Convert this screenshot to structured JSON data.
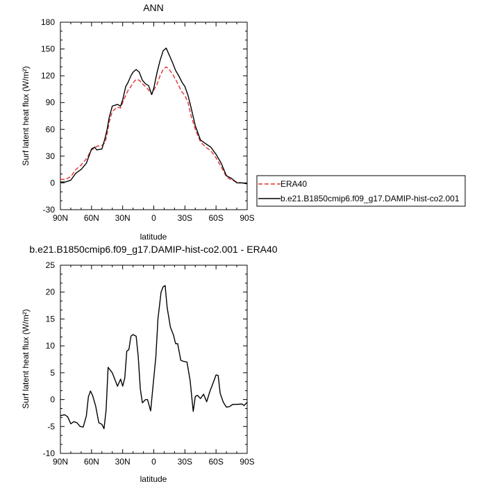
{
  "chart_data": [
    {
      "type": "line",
      "title": "ANN",
      "xlabel": "latitude",
      "ylabel": "Surf latent heat flux (W/m²)",
      "ylim": [
        -30,
        180
      ],
      "xlim": [
        -90,
        90
      ],
      "yticks": [
        -30,
        0,
        30,
        60,
        90,
        120,
        150,
        180
      ],
      "xtick_values": [
        -90,
        -60,
        -30,
        0,
        30,
        60,
        90
      ],
      "xtick_labels": [
        "90N",
        "60N",
        "30N",
        "0",
        "30S",
        "60S",
        "90S"
      ],
      "x": [
        -90,
        -85,
        -80,
        -75,
        -70,
        -65,
        -60,
        -57,
        -55,
        -50,
        -47,
        -45,
        -43,
        -40,
        -35,
        -32,
        -30,
        -27,
        -25,
        -22,
        -20,
        -17,
        -14,
        -11,
        -8,
        -5,
        -2,
        0,
        3,
        6,
        9,
        12,
        15,
        18,
        21,
        24,
        27,
        30,
        33,
        36,
        40,
        45,
        50,
        55,
        60,
        65,
        70,
        75,
        80,
        85,
        90
      ],
      "series": [
        {
          "name": "ERA40",
          "color": "#e03030",
          "dash": true,
          "values": [
            4,
            4,
            7,
            15,
            20,
            27,
            37,
            39,
            41,
            42,
            45,
            55,
            68,
            80,
            85,
            84,
            90,
            98,
            103,
            108,
            112,
            116,
            115,
            111,
            108,
            104,
            99,
            104,
            110,
            120,
            127,
            130,
            127,
            122,
            116,
            109,
            102,
            98,
            90,
            75,
            60,
            46,
            40,
            36,
            28,
            18,
            7,
            3,
            1,
            0,
            -1
          ]
        },
        {
          "name": "b.e21.B1850cmip6.f09_g17.DAMIP-hist-co2.001",
          "color": "#000000",
          "dash": false,
          "values": [
            1,
            1,
            3,
            11,
            15,
            22,
            38,
            40,
            37,
            38,
            50,
            60,
            73,
            86,
            88,
            86,
            93,
            108,
            112,
            120,
            124,
            127,
            124,
            115,
            111,
            109,
            99,
            106,
            123,
            137,
            148,
            151,
            143,
            135,
            126,
            120,
            113,
            108,
            98,
            84,
            64,
            48,
            44,
            40,
            32,
            22,
            8,
            5,
            0,
            0,
            -1
          ]
        }
      ],
      "legend_position": "right"
    },
    {
      "type": "line",
      "title": "b.e21.B1850cmip6.f09_g17.DAMIP-hist-co2.001 - ERA40",
      "xlabel": "latitude",
      "ylabel": "Surf latent heat flux (W/m²)",
      "ylim": [
        -10,
        25
      ],
      "xlim": [
        -90,
        90
      ],
      "yticks": [
        -10,
        -5,
        0,
        5,
        10,
        15,
        20,
        25
      ],
      "xtick_values": [
        -90,
        -60,
        -30,
        0,
        30,
        60,
        90
      ],
      "xtick_labels": [
        "90N",
        "60N",
        "30N",
        "0",
        "30S",
        "60S",
        "90S"
      ],
      "x": [
        -90,
        -86,
        -83,
        -80,
        -77,
        -74,
        -71,
        -68,
        -65,
        -63,
        -61,
        -59,
        -56,
        -53,
        -50,
        -48,
        -46,
        -44,
        -40,
        -37,
        -35,
        -32,
        -30,
        -28,
        -26,
        -24,
        -22,
        -20,
        -17,
        -15,
        -13,
        -11,
        -8,
        -6,
        -3,
        -1,
        2,
        4,
        7,
        9,
        11,
        12,
        13,
        16,
        19,
        21,
        23,
        26,
        29,
        32,
        35,
        38,
        40,
        42,
        45,
        48,
        51,
        54,
        57,
        60,
        62,
        64,
        67,
        70,
        73,
        76,
        80,
        85,
        87,
        90
      ],
      "series": [
        {
          "name": "",
          "color": "#000000",
          "dash": false,
          "values": [
            -3,
            -2.8,
            -3.2,
            -4.5,
            -4.1,
            -4.3,
            -5,
            -5.1,
            -3,
            0.5,
            1.6,
            0.8,
            -1.2,
            -4.3,
            -4.6,
            -5.4,
            -2,
            6,
            5,
            3.5,
            2.5,
            3.8,
            2.5,
            4,
            9,
            9.3,
            11.8,
            12.1,
            11.8,
            8,
            2,
            -0.6,
            0,
            0,
            -2.1,
            2,
            8,
            15,
            20,
            21,
            21.2,
            19,
            17,
            13.5,
            12,
            10.4,
            10.4,
            7.3,
            7.1,
            7,
            3.6,
            -2.2,
            0.6,
            0.8,
            0.2,
            1,
            -0.4,
            1.5,
            3,
            4.6,
            4.5,
            1.2,
            -0.5,
            -1.4,
            -1.3,
            -0.9,
            -0.9,
            -0.8,
            -1.1,
            -0.5
          ]
        }
      ]
    }
  ]
}
